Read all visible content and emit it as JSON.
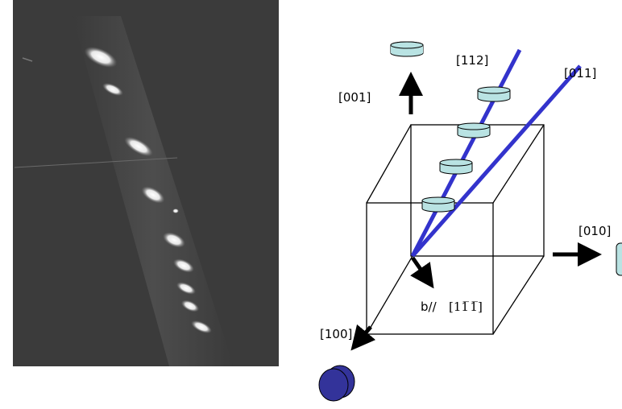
{
  "labels": {
    "dir_001": "[001]",
    "dir_112": "[112]",
    "dir_011": "[011]",
    "dir_010": "[010]",
    "dir_100": "[100]",
    "burgers_prefix": "b//",
    "burgers_dir": "[11̅ 1̅]"
  }
}
